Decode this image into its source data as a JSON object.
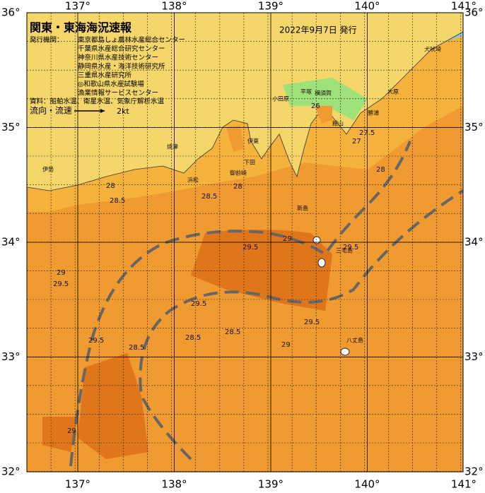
{
  "header": {
    "title": "関東・東海海況速報",
    "date": "2022年9月7日 発行",
    "issuers_label": "発行機関：",
    "issuers": [
      "東京都島しょ農林水産総合センター",
      "千葉県水産総合研究センター",
      "神奈川県水産技術センター",
      "静岡県水産・海洋技術研究所",
      "三重県水産研究所",
      "◎和歌山県水産試験場",
      "漁業情報サービスセンター"
    ],
    "materials": "資料：船舶水温、衛星水温、気象庁解析水温",
    "current_label": "流向・流速",
    "current_scale": "2kt"
  },
  "map": {
    "lon_ticks": [
      {
        "value": 137,
        "label": "137°"
      },
      {
        "value": 138,
        "label": "138°"
      },
      {
        "value": 139,
        "label": "139°"
      },
      {
        "value": 140,
        "label": "140°"
      },
      {
        "value": 141,
        "label": "141°"
      }
    ],
    "lat_ticks": [
      {
        "value": 36,
        "label": "36°"
      },
      {
        "value": 35,
        "label": "35°"
      },
      {
        "value": 34,
        "label": "34°"
      },
      {
        "value": 33,
        "label": "33°"
      },
      {
        "value": 32,
        "label": "32°"
      }
    ],
    "contour_labels": [
      28,
      28.5,
      28,
      28.5,
      29,
      29.5,
      29,
      29.5,
      29.5,
      28.5,
      28.5,
      28.5,
      29,
      29.5,
      29.5,
      29.5,
      29,
      26,
      27,
      27.5,
      28
    ],
    "places": [
      "小田原",
      "平塚",
      "横須賀",
      "館山",
      "勝浦",
      "大原",
      "犬吠埼",
      "伊東",
      "下田",
      "焼津",
      "御前崎",
      "新島",
      "三宅島",
      "八丈島",
      "浜松",
      "伊勢"
    ]
  }
}
